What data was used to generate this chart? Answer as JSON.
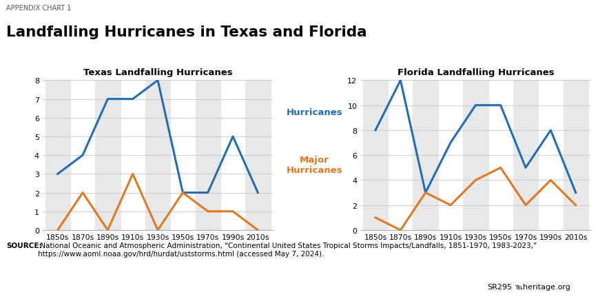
{
  "suptitle": "Landfalling Hurricanes in Texas and Florida",
  "appendix_label": "APPENDIX CHART 1",
  "texas_title": "Texas Landfalling Hurricanes",
  "florida_title": "Florida Landfalling Hurricanes",
  "decades": [
    "1850s",
    "1870s",
    "1890s",
    "1910s",
    "1930s",
    "1950s",
    "1970s",
    "1990s",
    "2010s"
  ],
  "texas_hurricanes": [
    3,
    4,
    7,
    7,
    8,
    2,
    2,
    5,
    2
  ],
  "texas_major": [
    0,
    2,
    0,
    3,
    0,
    2,
    1,
    1,
    0
  ],
  "florida_hurricanes": [
    8,
    12,
    3,
    7,
    10,
    10,
    5,
    8,
    3
  ],
  "florida_major": [
    1,
    0,
    3,
    2,
    4,
    5,
    2,
    4,
    2
  ],
  "decades_x": [
    1850,
    1870,
    1890,
    1910,
    1930,
    1950,
    1970,
    1990,
    2010
  ],
  "texas_ylim": [
    0,
    8
  ],
  "texas_yticks": [
    0,
    1,
    2,
    3,
    4,
    5,
    6,
    7,
    8
  ],
  "florida_ylim": [
    0,
    12
  ],
  "florida_yticks": [
    0,
    2,
    4,
    6,
    8,
    10,
    12
  ],
  "color_hurricanes": "#1f6db5",
  "color_major": "#e07820",
  "bg_color": "#e8e8e8",
  "plot_bg": "#ffffff",
  "legend_hurricanes": "Hurricanes",
  "legend_major": "Major\nHurricanes",
  "source_bold": "SOURCE:",
  "source_text": " National Oceanic and Atmospheric Administration, “Continental United States Tropical Storms Impacts/Landfalls, 1851-1970, 1983-2023,”\nhttps://www.aoml.noaa.gov/hrd/hurdat/uststorms.html (accessed May 7, 2024).",
  "footer_sr": "SR295",
  "footer_heritage": "℡heritage.org",
  "line_width": 2.2
}
